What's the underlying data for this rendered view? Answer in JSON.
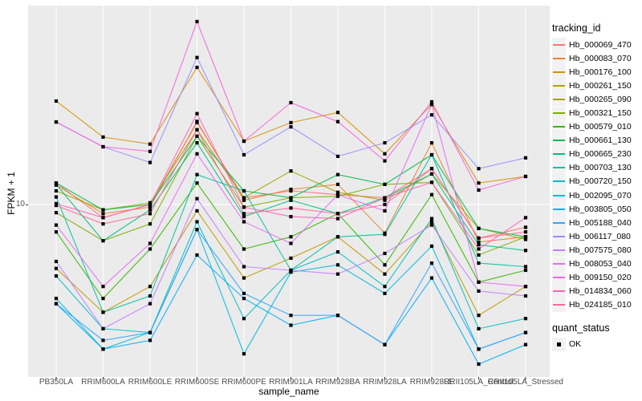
{
  "colors": {
    "panel_bg": "#EBEBEB",
    "grid": "#FFFFFF",
    "legend_key_bg": "#F2F2F2",
    "tick_text": "#4D4D4D",
    "tick_mark": "#333333",
    "point": "#000000"
  },
  "chart_data": {
    "type": "line",
    "xlabel": "sample_name",
    "ylabel": "FPKM + 1",
    "y_scale": "log10",
    "y_ticks": [
      10
    ],
    "y_tick_labels": [
      "10"
    ],
    "ylim_log10": [
      0.14,
      1.99
    ],
    "grid": "major-on",
    "legend_position": "right",
    "legend_title": "tracking_id",
    "point_shape": "black-square",
    "categories": [
      "PB350LA",
      "RRIM600LA",
      "RRIM600LE",
      "RRIM600SE",
      "RRIM600PE",
      "RRIM901LA",
      "RRIM928BA",
      "RRIM928LA",
      "RRIM928LE",
      "RRII105LA_Control",
      "RRII105LA_Stressed"
    ],
    "series": [
      {
        "name": "Hb_000069_470",
        "color": "#F8766D",
        "values": [
          12.8,
          8.6,
          10,
          25.6,
          10.8,
          11.7,
          11.2,
          10.8,
          15.1,
          6.8,
          7.7
        ]
      },
      {
        "name": "Hb_000083_070",
        "color": "#EA8331",
        "values": [
          12.5,
          9,
          9.7,
          26,
          10.5,
          11.9,
          12.6,
          7.2,
          20.3,
          6.5,
          6.9
        ]
      },
      {
        "name": "Hb_000176_100",
        "color": "#D89000",
        "values": [
          32.8,
          21.7,
          20,
          48.3,
          20.7,
          25.6,
          28.8,
          17.9,
          31.6,
          12.8,
          13.8
        ]
      },
      {
        "name": "Hb_000261_150",
        "color": "#C09B00",
        "values": [
          4.8,
          2.9,
          3.9,
          9.3,
          4.3,
          5.4,
          6.9,
          4.5,
          8.2,
          2.8,
          3.9
        ]
      },
      {
        "name": "Hb_000265_090",
        "color": "#A3A500",
        "values": [
          11.7,
          9.4,
          10.2,
          23.6,
          10.8,
          14.7,
          11.5,
          10.5,
          14.2,
          7.6,
          6.7
        ]
      },
      {
        "name": "Hb_000321_150",
        "color": "#7CAE00",
        "values": [
          9.1,
          6.6,
          8,
          21.9,
          9.7,
          10.8,
          11,
          12.6,
          12.9,
          5.6,
          6.9
        ]
      },
      {
        "name": "Hb_000579_010",
        "color": "#39B600",
        "values": [
          7.3,
          3.4,
          6,
          12.8,
          6,
          6.9,
          9,
          5,
          11.2,
          4.1,
          4.7
        ]
      },
      {
        "name": "Hb_000661_130",
        "color": "#00BB4E",
        "values": [
          12.8,
          9.4,
          10,
          21.9,
          11.7,
          10.8,
          14.1,
          12.6,
          17.7,
          7.6,
          6.9
        ]
      },
      {
        "name": "Hb_000665_230",
        "color": "#00BF7D",
        "values": [
          12.6,
          6.6,
          9.4,
          20.3,
          8.7,
          10.5,
          9,
          10.8,
          14.2,
          6.3,
          5.9
        ]
      },
      {
        "name": "Hb_000703_130",
        "color": "#00C1A3",
        "values": [
          10.9,
          2.9,
          3.5,
          14.1,
          11.7,
          4.7,
          6.9,
          7.1,
          17.7,
          5.1,
          4.9
        ]
      },
      {
        "name": "Hb_000720_150",
        "color": "#00BFC4",
        "values": [
          4.4,
          2.4,
          2.3,
          8.2,
          2.7,
          4.7,
          5.8,
          3.9,
          8.5,
          2.4,
          2.7
        ]
      },
      {
        "name": "Hb_002095_070",
        "color": "#00BAE0",
        "values": [
          3.4,
          1.9,
          2.3,
          7.5,
          1.8,
          4.6,
          5,
          3.6,
          6.2,
          1.9,
          2.3
        ]
      },
      {
        "name": "Hb_003805_050",
        "color": "#00B0F6",
        "values": [
          3.2,
          1.9,
          2.1,
          5.6,
          3.4,
          2.5,
          2.8,
          2,
          4.3,
          1.6,
          2
        ]
      },
      {
        "name": "Hb_005188_040",
        "color": "#35A2FF",
        "values": [
          3.2,
          2.1,
          2.3,
          7.5,
          3.6,
          2.8,
          2.8,
          2,
          5.1,
          1.9,
          2.3
        ]
      },
      {
        "name": "Hb_006117_080",
        "color": "#9590FF",
        "values": [
          25.8,
          19.4,
          16.2,
          54.1,
          17.7,
          24.4,
          17.4,
          20.3,
          28,
          15.1,
          17.1
        ]
      },
      {
        "name": "Hb_007575_080",
        "color": "#C77CFF",
        "values": [
          5.2,
          2.4,
          3.2,
          10.7,
          4.9,
          4.7,
          4.5,
          5.7,
          7.9,
          3.7,
          3.5
        ]
      },
      {
        "name": "Hb_008053_040",
        "color": "#E76BF3",
        "values": [
          7.9,
          3.9,
          6.4,
          17.9,
          8.2,
          6.4,
          11.2,
          9.3,
          31.6,
          4.1,
          3.9
        ]
      },
      {
        "name": "Hb_009150_020",
        "color": "#FA62DB",
        "values": [
          25.8,
          19.4,
          18.4,
          81.7,
          20.7,
          32.2,
          25.9,
          16.5,
          32.5,
          11.8,
          13.8
        ]
      },
      {
        "name": "Hb_014834_060",
        "color": "#FF62BC",
        "values": [
          10.1,
          8.6,
          10,
          28.4,
          9.7,
          8.7,
          8.5,
          10.8,
          12.9,
          6,
          8.6
        ]
      },
      {
        "name": "Hb_024185_010",
        "color": "#FF6A98",
        "values": [
          9.9,
          8,
          9,
          23.6,
          9,
          9.6,
          9,
          10,
          15.1,
          6.8,
          7.3
        ]
      }
    ],
    "quant_status": {
      "label": "quant_status",
      "items": [
        {
          "label": "OK",
          "shape": "black-square"
        }
      ]
    }
  }
}
